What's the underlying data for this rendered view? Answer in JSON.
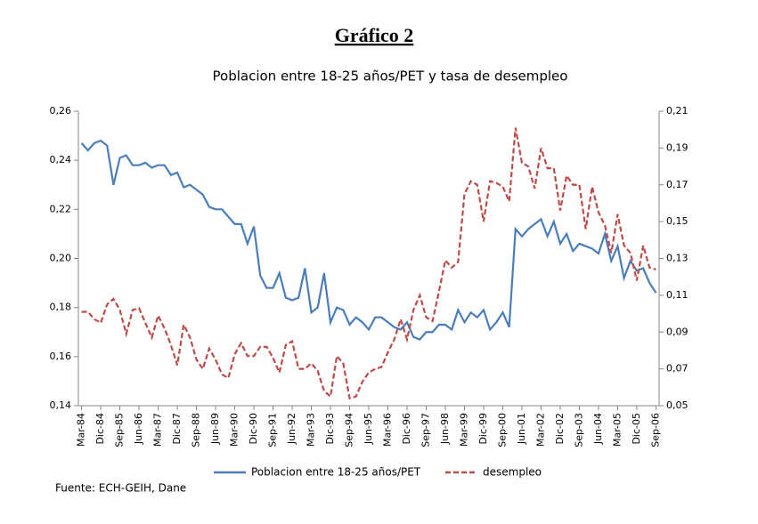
{
  "chart_data": {
    "type": "line",
    "title": "Gráfico 2",
    "subtitle": "Poblacion entre 18-25 años/PET  y tasa de desempleo",
    "source": "Fuente: ECH-GEIH, Dane",
    "categories": [
      "Mar-84",
      null,
      null,
      "Dic-84",
      null,
      null,
      "Sep-85",
      null,
      null,
      "Jun-86",
      null,
      null,
      "Mar-87",
      null,
      null,
      "Dic-87",
      null,
      null,
      "Sep-88",
      null,
      null,
      "Jun-89",
      null,
      null,
      "Mar-90",
      null,
      null,
      "Dic-90",
      null,
      null,
      "Sep-91",
      null,
      null,
      "Jun-92",
      null,
      null,
      "Mar-93",
      null,
      null,
      "Dic-93",
      null,
      null,
      "Sep-94",
      null,
      null,
      "Jun-95",
      null,
      null,
      "Mar-96",
      null,
      null,
      "Dic-96",
      null,
      null,
      "Sep-97",
      null,
      null,
      "Jun-98",
      null,
      null,
      "Mar-99",
      null,
      null,
      "Dic-99",
      null,
      null,
      "Sep-00",
      null,
      null,
      "Jun-01",
      null,
      null,
      "Mar-02",
      null,
      null,
      "Dic-02",
      null,
      null,
      "Sep-03",
      null,
      null,
      "Jun-04",
      null,
      null,
      "Mar-05",
      null,
      null,
      "Dic-05",
      null,
      null,
      "Sep-06"
    ],
    "series": [
      {
        "name": "Poblacion entre 18-25 años/PET",
        "color": "#4a7ebb",
        "dashed": false,
        "values": [
          0.247,
          0.244,
          0.247,
          0.248,
          0.246,
          0.23,
          0.241,
          0.242,
          0.238,
          0.238,
          0.239,
          0.237,
          0.238,
          0.238,
          0.234,
          0.235,
          0.229,
          0.23,
          0.228,
          0.226,
          0.221,
          0.22,
          0.22,
          0.217,
          0.214,
          0.214,
          0.206,
          0.213,
          0.193,
          0.188,
          0.188,
          0.194,
          0.184,
          0.183,
          0.184,
          0.196,
          0.178,
          0.18,
          0.194,
          0.174,
          0.18,
          0.179,
          0.173,
          0.176,
          0.174,
          0.171,
          0.176,
          0.176,
          0.174,
          0.172,
          0.171,
          0.174,
          0.168,
          0.167,
          0.17,
          0.17,
          0.173,
          0.173,
          0.171,
          0.179,
          0.174,
          0.178,
          0.176,
          0.179,
          0.171,
          0.174,
          0.178,
          0.172,
          0.212,
          0.209,
          0.212,
          0.214,
          0.216,
          0.209,
          0.215,
          0.206,
          0.21,
          0.203,
          0.206,
          0.205,
          0.204,
          0.202,
          0.21,
          0.199,
          0.205,
          0.192,
          0.199,
          0.195,
          0.196,
          0.19,
          0.186
        ]
      },
      {
        "name": "desempleo",
        "color": "#be4b48",
        "dashed": true,
        "axis": "y2",
        "values": [
          0.101,
          0.101,
          0.097,
          0.095,
          0.105,
          0.108,
          0.102,
          0.089,
          0.102,
          0.103,
          0.095,
          0.087,
          0.099,
          0.092,
          0.083,
          0.072,
          0.094,
          0.087,
          0.075,
          0.07,
          0.081,
          0.075,
          0.067,
          0.065,
          0.078,
          0.084,
          0.077,
          0.077,
          0.082,
          0.082,
          0.076,
          0.068,
          0.083,
          0.085,
          0.07,
          0.07,
          0.073,
          0.069,
          0.058,
          0.055,
          0.077,
          0.073,
          0.054,
          0.055,
          0.063,
          0.068,
          0.07,
          0.071,
          0.079,
          0.086,
          0.097,
          0.086,
          0.102,
          0.11,
          0.098,
          0.096,
          0.112,
          0.129,
          0.125,
          0.128,
          0.165,
          0.172,
          0.17,
          0.15,
          0.172,
          0.171,
          0.169,
          0.161,
          0.201,
          0.182,
          0.18,
          0.168,
          0.19,
          0.179,
          0.179,
          0.156,
          0.175,
          0.17,
          0.17,
          0.146,
          0.169,
          0.155,
          0.148,
          0.133,
          0.154,
          0.137,
          0.133,
          0.118,
          0.137,
          0.125,
          0.124
        ]
      }
    ],
    "ylim": [
      0.14,
      0.26
    ],
    "yticks": [
      {
        "value": 0.14,
        "label": "0,14"
      },
      {
        "value": 0.16,
        "label": "0,16"
      },
      {
        "value": 0.18,
        "label": "0,18"
      },
      {
        "value": 0.2,
        "label": "0,20"
      },
      {
        "value": 0.22,
        "label": "0,22"
      },
      {
        "value": 0.24,
        "label": "0,24"
      },
      {
        "value": 0.26,
        "label": "0,26"
      }
    ],
    "y2lim": [
      0.05,
      0.21
    ],
    "y2ticks": [
      {
        "value": 0.05,
        "label": "0,05"
      },
      {
        "value": 0.07,
        "label": "0,07"
      },
      {
        "value": 0.09,
        "label": "0,09"
      },
      {
        "value": 0.11,
        "label": "0,11"
      },
      {
        "value": 0.13,
        "label": "0,13"
      },
      {
        "value": 0.15,
        "label": "0,15"
      },
      {
        "value": 0.17,
        "label": "0,17"
      },
      {
        "value": 0.19,
        "label": "0,19"
      },
      {
        "value": 0.21,
        "label": "0,21"
      }
    ],
    "grid": false
  }
}
